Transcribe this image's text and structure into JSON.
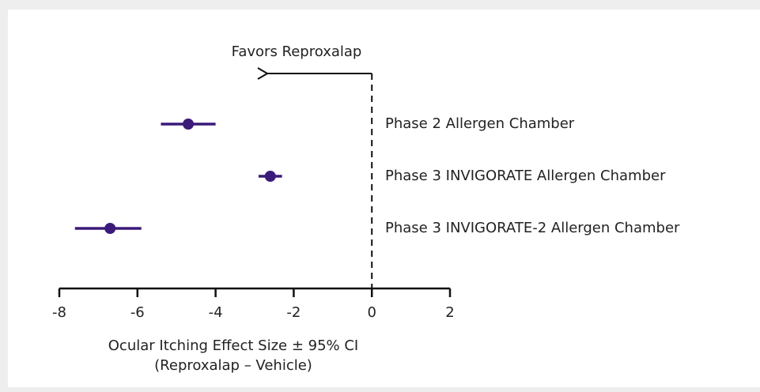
{
  "chart_data": {
    "type": "forest",
    "annotation": "Favors Reproxalap",
    "xlabel": [
      "Ocular Itching Effect Size ± 95% CI",
      "(Reproxalap – Vehicle)"
    ],
    "categories": [
      "Phase 2 Allergen Chamber",
      "Phase 3 INVIGORATE Allergen Chamber",
      "Phase 3 INVIGORATE-2 Allergen Chamber"
    ],
    "values": [
      -4.7,
      -2.6,
      -6.7
    ],
    "ci_low": [
      -5.4,
      -2.9,
      -7.6
    ],
    "ci_high": [
      -4.0,
      -2.3,
      -5.9
    ],
    "color": "#3b1a7a",
    "xlim": [
      -8,
      2
    ],
    "xticks": [
      -8,
      -6,
      -4,
      -2,
      0,
      2
    ],
    "reference": 0
  }
}
